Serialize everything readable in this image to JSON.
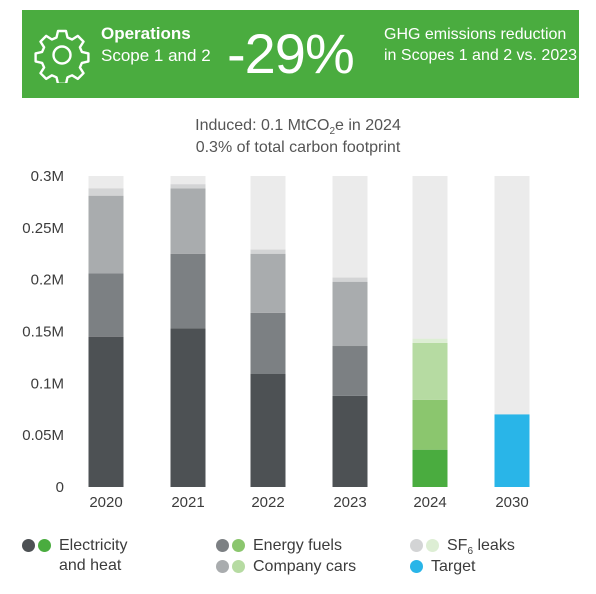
{
  "banner": {
    "title": "Operations",
    "subtitle": "Scope 1 and 2",
    "big_number": "-29%",
    "description": "GHG emissions reduction in Scopes 1 and 2 vs. 2023",
    "color": "#4aac3f"
  },
  "header": {
    "line1_prefix": "Induced: 0.1 MtCO",
    "line1_sub": "2",
    "line1_suffix": "e in 2024",
    "line2": "0.3% of total carbon footprint"
  },
  "chart_data": {
    "type": "bar",
    "stacked": true,
    "categories": [
      "2020",
      "2021",
      "2022",
      "2023",
      "2024",
      "2030"
    ],
    "ylim": [
      0,
      0.3
    ],
    "yticks": [
      "0",
      "0.05M",
      "0.1M",
      "0.15M",
      "0.2M",
      "0.25M",
      "0.3M"
    ],
    "series": [
      {
        "name": "Electricity and heat",
        "values": [
          0.145,
          0.153,
          0.109,
          0.088,
          0.036,
          0
        ],
        "color": "#4d5154",
        "color_2024": "#4aac3f"
      },
      {
        "name": "Energy fuels",
        "values": [
          0.061,
          0.072,
          0.059,
          0.048,
          0.048,
          0
        ],
        "color": "#7c8083",
        "color_2024": "#8bc66e"
      },
      {
        "name": "Company cars",
        "values": [
          0.075,
          0.063,
          0.057,
          0.062,
          0.055,
          0
        ],
        "color": "#a9acae",
        "color_2024": "#b6dba2"
      },
      {
        "name": "SF6 leaks",
        "values": [
          0.007,
          0.004,
          0.004,
          0.004,
          0.004,
          0
        ],
        "color": "#d3d4d5",
        "color_2024": "#ddeed4"
      },
      {
        "name": "Target",
        "values": [
          0,
          0,
          0,
          0,
          0,
          0.07
        ],
        "color": "#29b5e8"
      }
    ],
    "background_bar_color": "#ebebeb"
  },
  "legend": {
    "electricity_line1": "Electricity",
    "electricity_line2": "and heat",
    "energy_fuels": "Energy fuels",
    "company_cars": "Company cars",
    "sf6_prefix": "SF",
    "sf6_sub": "6",
    "sf6_suffix": " leaks",
    "target": "Target"
  }
}
